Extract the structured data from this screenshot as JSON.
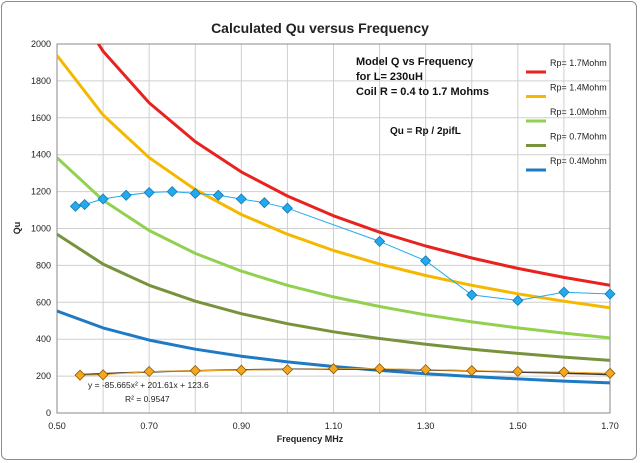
{
  "chart_data": {
    "type": "line",
    "title": "Calculated Qu versus Frequency",
    "xlabel": "Frequency  MHz",
    "ylabel": "Qu",
    "xlim": [
      0.5,
      1.7
    ],
    "ylim": [
      0,
      2000
    ],
    "x_ticks": [
      "0.50",
      "0.70",
      "0.90",
      "1.10",
      "1.30",
      "1.50",
      "1.70"
    ],
    "y_ticks": [
      "0",
      "200",
      "400",
      "600",
      "800",
      "1000",
      "1200",
      "1400",
      "1600",
      "1800",
      "2000"
    ],
    "grid": true,
    "legend_position": "right",
    "annotations": {
      "model_lines": [
        "Model Q vs Frequency",
        "for L= 230uH",
        "Coil R = 0.4 to 1.7 Mohms"
      ],
      "formula": "Qu = Rp / 2pifL",
      "fit_equation": "y = -85.665x² + 201.61x + 123.6",
      "fit_r2": "R² = 0.9547"
    },
    "series": [
      {
        "name": "Rp= 1.7Mohm",
        "color": "#e8231f",
        "x": [
          0.5,
          0.6,
          0.7,
          0.8,
          0.9,
          1.0,
          1.1,
          1.2,
          1.3,
          1.4,
          1.5,
          1.6,
          1.7
        ],
        "y": [
          2353,
          1961,
          1681,
          1471,
          1307,
          1176,
          1069,
          980,
          905,
          840,
          784,
          735,
          692
        ]
      },
      {
        "name": "Rp= 1.4Mohm",
        "color": "#f5b800",
        "x": [
          0.5,
          0.6,
          0.7,
          0.8,
          0.9,
          1.0,
          1.1,
          1.2,
          1.3,
          1.4,
          1.5,
          1.6,
          1.7
        ],
        "y": [
          1938,
          1615,
          1384,
          1211,
          1076,
          969,
          881,
          807,
          745,
          692,
          646,
          606,
          570
        ]
      },
      {
        "name": "Rp= 1.0Mohm",
        "color": "#92d050",
        "x": [
          0.5,
          0.6,
          0.7,
          0.8,
          0.9,
          1.0,
          1.1,
          1.2,
          1.3,
          1.4,
          1.5,
          1.6,
          1.7
        ],
        "y": [
          1384,
          1153,
          989,
          865,
          769,
          692,
          629,
          577,
          532,
          494,
          461,
          433,
          407
        ]
      },
      {
        "name": "Rp= 0.7Mohm",
        "color": "#77933c",
        "x": [
          0.5,
          0.6,
          0.7,
          0.8,
          0.9,
          1.0,
          1.1,
          1.2,
          1.3,
          1.4,
          1.5,
          1.6,
          1.7
        ],
        "y": [
          969,
          807,
          692,
          606,
          538,
          484,
          440,
          404,
          373,
          346,
          323,
          303,
          285
        ]
      },
      {
        "name": "Rp= 0.4Mohm",
        "color": "#1f7ac6",
        "x": [
          0.5,
          0.6,
          0.7,
          0.8,
          0.9,
          1.0,
          1.1,
          1.2,
          1.3,
          1.4,
          1.5,
          1.6,
          1.7
        ],
        "y": [
          553,
          461,
          395,
          346,
          308,
          277,
          252,
          231,
          213,
          198,
          185,
          173,
          163
        ]
      }
    ],
    "measured": {
      "color": "#22aaee",
      "x": [
        0.54,
        0.56,
        0.6,
        0.65,
        0.7,
        0.75,
        0.8,
        0.85,
        0.9,
        0.95,
        1.0,
        1.2,
        1.3,
        1.4,
        1.5,
        1.6,
        1.7
      ],
      "y": [
        1120,
        1130,
        1160,
        1180,
        1195,
        1200,
        1190,
        1180,
        1160,
        1140,
        1110,
        930,
        825,
        640,
        610,
        655,
        645
      ]
    },
    "measured_low": {
      "color": "#f5a623",
      "x": [
        0.55,
        0.6,
        0.7,
        0.8,
        0.9,
        1.0,
        1.1,
        1.2,
        1.3,
        1.4,
        1.5,
        1.6,
        1.7
      ],
      "y": [
        205,
        207,
        225,
        230,
        232,
        235,
        240,
        240,
        235,
        230,
        225,
        222,
        215
      ]
    },
    "trendline": {
      "color": "#333333",
      "x": [
        0.55,
        0.65,
        0.75,
        0.85,
        0.95,
        1.05,
        1.15,
        1.25,
        1.35,
        1.45,
        1.55,
        1.65,
        1.7
      ],
      "y": [
        208,
        218,
        226,
        232,
        236,
        238,
        237,
        235,
        231,
        225,
        219,
        212,
        208
      ]
    }
  }
}
